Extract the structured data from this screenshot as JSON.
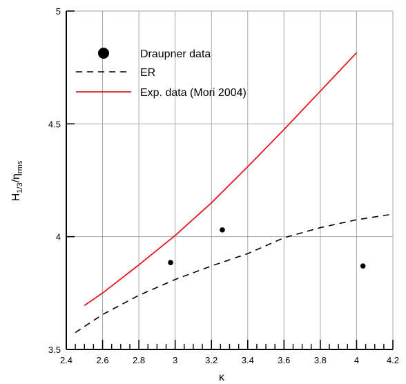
{
  "chart_data": {
    "type": "line",
    "title": "",
    "xlabel": "κ",
    "ylabel": {
      "main": "H",
      "sub1": "1/3",
      "sep": "/η",
      "sub2": "rms"
    },
    "xlim": [
      2.4,
      4.2
    ],
    "ylim": [
      3.5,
      5.0
    ],
    "xticks": [
      "2.4",
      "2.6",
      "2.8",
      "3",
      "3.2",
      "3.4",
      "3.6",
      "3.8",
      "4",
      "4.2"
    ],
    "yticks": [
      "3.5",
      "4",
      "4.5",
      "5"
    ],
    "grid": true,
    "legend_position": "top-left",
    "series": [
      {
        "name": "Draupner data",
        "kind": "scatter",
        "color": "#000000",
        "x": [
          2.975,
          3.26,
          4.035
        ],
        "y": [
          3.885,
          4.03,
          3.87
        ]
      },
      {
        "name": "ER",
        "kind": "line",
        "style": "dashed",
        "color": "#000000",
        "x": [
          2.45,
          2.6,
          2.8,
          3.0,
          3.2,
          3.4,
          3.6,
          3.8,
          4.0,
          4.2
        ],
        "y": [
          3.575,
          3.655,
          3.74,
          3.81,
          3.87,
          3.925,
          3.995,
          4.04,
          4.075,
          4.1
        ]
      },
      {
        "name": "Exp. data (Mori 2004)",
        "kind": "line",
        "style": "solid",
        "color": "#e8141c",
        "x": [
          2.5,
          2.6,
          2.8,
          3.0,
          3.2,
          3.4,
          3.6,
          3.8,
          4.0
        ],
        "y": [
          3.695,
          3.75,
          3.875,
          4.005,
          4.15,
          4.31,
          4.475,
          4.645,
          4.815
        ]
      }
    ]
  }
}
